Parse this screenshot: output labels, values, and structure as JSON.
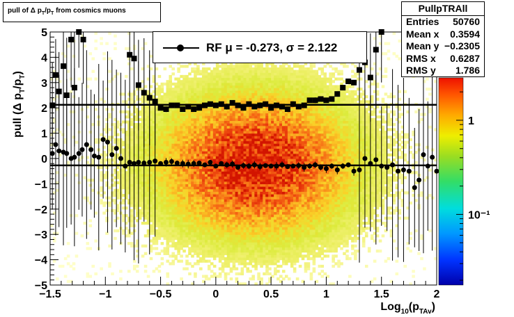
{
  "title": "pull of Δ p",
  "title_sub1": "T",
  "title_mid": "/p",
  "title_sub2": "T",
  "title_end": " from cosmics muons",
  "stats": {
    "name": "PullpTRAll",
    "rows": [
      {
        "label": "Entries",
        "value": "50760"
      },
      {
        "label": "Mean x",
        "value": "0.3594"
      },
      {
        "label": "Mean y",
        "value": "−0.2305"
      },
      {
        "label": "RMS x",
        "value": "0.6287"
      },
      {
        "label": "RMS y",
        "value": "1.786"
      }
    ]
  },
  "legend": {
    "entry": "RF μ = -0.273, σ =   2.122"
  },
  "chart_data": {
    "type": "heatmap",
    "xlabel": "Log",
    "xlabel_sub": "10",
    "xlabel_mid": "(p",
    "xlabel_sub2": "TAv",
    "xlabel_end": ")",
    "ylabel": "pull (Δ p",
    "ylabel_sub1": "T",
    "ylabel_mid": "/p",
    "ylabel_sub2": "T",
    "ylabel_end": ")",
    "xlim": [
      -1.5,
      2
    ],
    "ylim": [
      -5,
      5
    ],
    "xticks": [
      "−1.5",
      "−1",
      "−0.5",
      "0",
      "0.5",
      "1",
      "1.5",
      "2"
    ],
    "yticks": [
      "−5",
      "−4",
      "−3",
      "−2",
      "−1",
      "0",
      "1",
      "2",
      "3",
      "4",
      "5"
    ],
    "colorbar_ticks": [
      "1",
      "10⁻¹"
    ],
    "fit_lines": {
      "mean": -0.273,
      "sigma": 2.122
    },
    "mean_points": [
      [
        -1.48,
        0.2
      ],
      [
        -1.45,
        0.55
      ],
      [
        -1.42,
        0.3
      ],
      [
        -1.38,
        0.25
      ],
      [
        -1.35,
        0.2
      ],
      [
        -1.31,
        0.0
      ],
      [
        -1.28,
        0.05
      ],
      [
        -1.24,
        0.2
      ],
      [
        -1.21,
        0.35
      ],
      [
        -1.17,
        0.55
      ],
      [
        -1.13,
        0.35
      ],
      [
        -1.1,
        0.1
      ],
      [
        -1.06,
        0.05
      ],
      [
        -1.02,
        0.75
      ],
      [
        -0.98,
        0.65
      ],
      [
        -0.94,
        0.15
      ],
      [
        -0.9,
        0.4
      ],
      [
        -0.86,
        0.0
      ],
      [
        -0.82,
        -0.3
      ],
      [
        -0.78,
        -0.15
      ],
      [
        -0.74,
        -0.2
      ],
      [
        -0.7,
        -0.15
      ],
      [
        -0.65,
        -0.18
      ],
      [
        -0.6,
        -0.15
      ],
      [
        -0.55,
        -0.1
      ],
      [
        -0.5,
        -0.2
      ],
      [
        -0.45,
        -0.15
      ],
      [
        -0.4,
        -0.12
      ],
      [
        -0.35,
        -0.18
      ],
      [
        -0.3,
        -0.2
      ],
      [
        -0.25,
        -0.22
      ],
      [
        -0.2,
        -0.2
      ],
      [
        -0.15,
        -0.18
      ],
      [
        -0.1,
        -0.25
      ],
      [
        -0.05,
        -0.15
      ],
      [
        0.0,
        -0.3
      ],
      [
        0.05,
        -0.2
      ],
      [
        0.1,
        -0.25
      ],
      [
        0.15,
        -0.22
      ],
      [
        0.2,
        -0.35
      ],
      [
        0.25,
        -0.28
      ],
      [
        0.3,
        -0.3
      ],
      [
        0.35,
        -0.25
      ],
      [
        0.4,
        -0.32
      ],
      [
        0.45,
        -0.28
      ],
      [
        0.5,
        -0.3
      ],
      [
        0.55,
        -0.3
      ],
      [
        0.6,
        -0.25
      ],
      [
        0.65,
        -0.32
      ],
      [
        0.7,
        -0.3
      ],
      [
        0.75,
        -0.28
      ],
      [
        0.8,
        -0.35
      ],
      [
        0.85,
        -0.3
      ],
      [
        0.9,
        -0.25
      ],
      [
        0.95,
        -0.35
      ],
      [
        1.0,
        -0.4
      ],
      [
        1.05,
        -0.3
      ],
      [
        1.1,
        -0.45
      ],
      [
        1.15,
        -0.3
      ],
      [
        1.2,
        -0.25
      ],
      [
        1.25,
        -0.5
      ],
      [
        1.3,
        -0.45
      ],
      [
        1.35,
        0.0
      ],
      [
        1.4,
        -0.2
      ],
      [
        1.45,
        -0.05
      ],
      [
        1.5,
        -0.3
      ],
      [
        1.55,
        -0.35
      ],
      [
        1.6,
        -0.25
      ],
      [
        1.65,
        -0.5
      ],
      [
        1.7,
        -0.45
      ],
      [
        1.75,
        -0.5
      ],
      [
        1.8,
        -1.15
      ],
      [
        1.84,
        -0.85
      ],
      [
        1.88,
        0.15
      ],
      [
        1.92,
        -0.3
      ],
      [
        1.96,
        0.05
      ],
      [
        2.0,
        -0.5
      ]
    ],
    "sigma_points": [
      [
        -1.48,
        2.1
      ],
      [
        -1.45,
        3.3
      ],
      [
        -1.42,
        2.65
      ],
      [
        -1.38,
        3.65
      ],
      [
        -1.35,
        2.5
      ],
      [
        -1.31,
        4.7
      ],
      [
        -1.28,
        2.8
      ],
      [
        -1.24,
        5.0
      ],
      [
        -1.2,
        4.7
      ],
      [
        -0.78,
        4.1
      ],
      [
        -0.74,
        3.95
      ],
      [
        -0.7,
        2.9
      ],
      [
        -0.65,
        2.6
      ],
      [
        -0.6,
        2.4
      ],
      [
        -0.55,
        2.25
      ],
      [
        -0.5,
        2.0
      ],
      [
        -0.45,
        1.95
      ],
      [
        -0.4,
        2.1
      ],
      [
        -0.35,
        2.1
      ],
      [
        -0.3,
        1.95
      ],
      [
        -0.25,
        2.05
      ],
      [
        -0.2,
        1.95
      ],
      [
        -0.15,
        2.0
      ],
      [
        -0.1,
        2.1
      ],
      [
        -0.05,
        2.15
      ],
      [
        0.0,
        2.1
      ],
      [
        0.05,
        2.15
      ],
      [
        0.1,
        2.05
      ],
      [
        0.15,
        2.2
      ],
      [
        0.2,
        2.1
      ],
      [
        0.25,
        2.0
      ],
      [
        0.3,
        2.15
      ],
      [
        0.35,
        2.05
      ],
      [
        0.4,
        2.1
      ],
      [
        0.45,
        2.15
      ],
      [
        0.5,
        2.0
      ],
      [
        0.55,
        2.1
      ],
      [
        0.6,
        2.05
      ],
      [
        0.65,
        1.95
      ],
      [
        0.7,
        2.15
      ],
      [
        0.75,
        2.05
      ],
      [
        0.8,
        2.1
      ],
      [
        0.85,
        2.3
      ],
      [
        0.9,
        2.3
      ],
      [
        0.95,
        2.35
      ],
      [
        1.0,
        2.3
      ],
      [
        1.05,
        2.35
      ],
      [
        1.1,
        2.55
      ],
      [
        1.15,
        2.8
      ],
      [
        1.2,
        3.05
      ],
      [
        1.25,
        3.0
      ],
      [
        1.3,
        3.5
      ],
      [
        1.35,
        3.8
      ],
      [
        1.4,
        3.2
      ],
      [
        1.45,
        4.3
      ],
      [
        1.5,
        5.0
      ]
    ]
  }
}
